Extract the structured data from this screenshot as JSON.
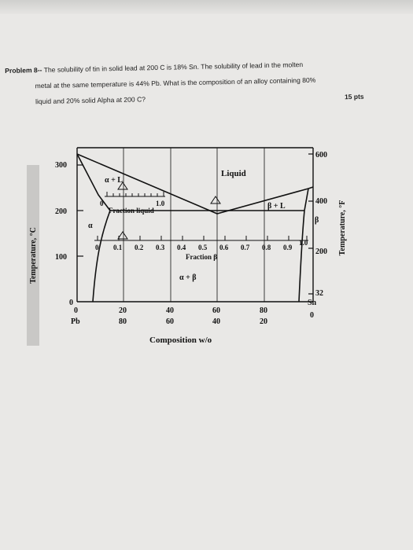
{
  "problem": {
    "label": "Problem 8--",
    "line1_rest": "The solubility of tin in solid lead at 200 C is 18% Sn. The solubility of lead in the molten",
    "line2": "metal at the same temperature is 44% Pb. What is the composition of an alloy containing 80%",
    "line3": "liquid and 20% solid Alpha at 200 C?",
    "points": "15 pts"
  },
  "diagram": {
    "left_axis_title": "Temperature, °C",
    "right_axis_title": "Temperature, °F",
    "left_ticks": [
      "300",
      "200",
      "100",
      "0"
    ],
    "right_ticks": [
      "600",
      "400",
      "200",
      "32"
    ],
    "composition_top": [
      "0",
      "20",
      "40",
      "60",
      "80",
      "Sn"
    ],
    "composition_bottom": [
      "Pb",
      "80",
      "60",
      "40",
      "20",
      "0"
    ],
    "x_axis_title": "Composition w/o",
    "region_liquid": "Liquid",
    "region_alpha_liquid": "α + L",
    "region_beta_liquid": "β + L",
    "region_alpha_beta": "α + β",
    "label_alpha": "α",
    "label_beta": "β",
    "fraction_liquid_label": "Fraction liquid",
    "fraction_liquid_start": "0",
    "fraction_liquid_end": "1.0",
    "fraction_beta_label": "Fraction β",
    "fraction_beta_ticks": [
      "0",
      "0.1",
      "0.2",
      "0.3",
      "0.4",
      "0.5",
      "0.6",
      "0.7",
      "0.8",
      "0.9",
      "1.0"
    ]
  }
}
